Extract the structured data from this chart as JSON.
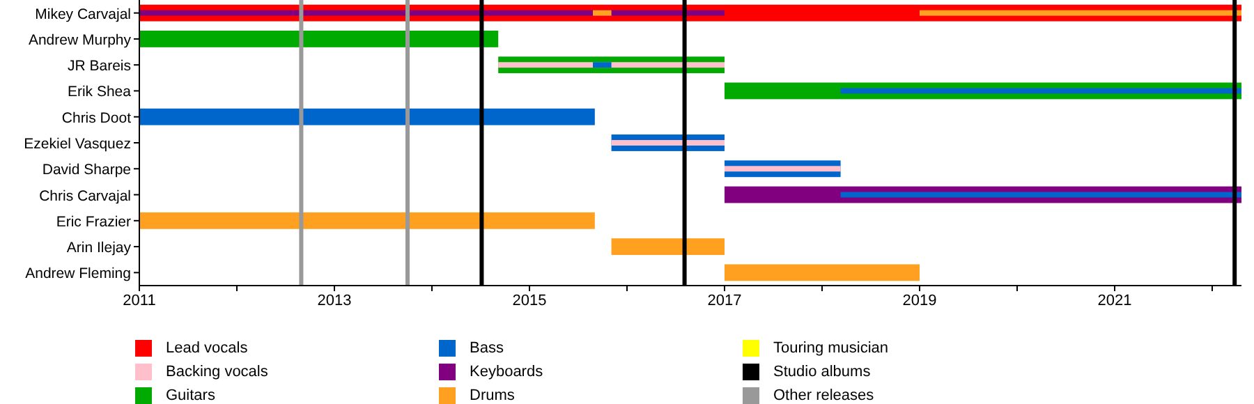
{
  "chart_data": {
    "type": "bar",
    "orientation": "horizontal",
    "legend": "bottom",
    "categories": [
      "Mikey Carvajal",
      "Andrew Murphy",
      "JR Bareis",
      "Erik Shea",
      "Chris Doot",
      "Ezekiel Vasquez",
      "David Sharpe",
      "Chris Carvajal",
      "Eric Frazier",
      "Arin Ilejay",
      "Andrew Fleming"
    ],
    "series": [
      {
        "name": "Lead vocals",
        "color": "#ff0000",
        "base": [
          2011,
          null,
          null,
          null,
          null,
          null,
          null,
          null,
          null,
          null,
          null
        ],
        "values": [
          11.3,
          null,
          null,
          null,
          null,
          null,
          null,
          null,
          null,
          null,
          null
        ]
      },
      {
        "name": "Backing vocals",
        "color": "#ffc0cb",
        "base": [
          null,
          null,
          2014.68,
          null,
          null,
          2015.84,
          2017,
          null,
          null,
          null,
          null
        ],
        "values": [
          null,
          null,
          2.32,
          null,
          null,
          1.16,
          1.19,
          null,
          null,
          null,
          null
        ]
      },
      {
        "name": "Guitars",
        "color": "#00aa00",
        "base": [
          null,
          2011,
          2014.68,
          2017,
          null,
          null,
          null,
          null,
          null,
          null,
          null
        ],
        "values": [
          null,
          3.68,
          2.32,
          5.3,
          null,
          null,
          null,
          null,
          null,
          null,
          null
        ]
      },
      {
        "name": "Bass",
        "color": "#0066cc",
        "base": [
          null,
          null,
          2015.65,
          2018.19,
          2011,
          2015.84,
          2017,
          2018.19,
          null,
          null,
          null
        ],
        "values": [
          null,
          null,
          0.19,
          4.11,
          4.67,
          1.16,
          1.19,
          4.11,
          null,
          null,
          null
        ]
      },
      {
        "name": "Keyboards",
        "color": "#800080",
        "base": [
          2011,
          null,
          null,
          null,
          null,
          null,
          null,
          2017,
          null,
          null,
          null
        ],
        "values": [
          6,
          null,
          null,
          null,
          null,
          null,
          null,
          5.3,
          null,
          null,
          null
        ]
      },
      {
        "name": "Drums",
        "color": "#ffa020",
        "base": [
          2015.65,
          null,
          null,
          null,
          null,
          null,
          null,
          null,
          2011,
          2015.84,
          2017
        ],
        "values": [
          0.19,
          null,
          null,
          null,
          null,
          null,
          null,
          null,
          4.67,
          1.16,
          2
        ]
      },
      {
        "name": "Touring musician",
        "color": "#ffff00",
        "base": [
          null,
          null,
          null,
          null,
          null,
          null,
          null,
          null,
          null,
          null,
          null
        ],
        "values": [
          null,
          null,
          null,
          null,
          null,
          null,
          null,
          null,
          null,
          null,
          null
        ]
      },
      {
        "color": "#ffa020",
        "base": [
          2019,
          null,
          null,
          null,
          null,
          null,
          null,
          null,
          null,
          null,
          null
        ],
        "values": [
          3.3,
          null,
          null,
          null,
          null,
          null,
          null,
          null,
          null,
          null,
          null
        ]
      }
    ],
    "xlim": [
      2011,
      2022.3
    ],
    "xticks": [
      2011,
      {
        "value": 2012,
        "label": null
      },
      2013,
      {
        "value": 2014,
        "label": null
      },
      2015,
      {
        "value": 2016,
        "label": null
      },
      2017,
      {
        "value": 2018,
        "label": null
      },
      2019,
      {
        "value": 2020,
        "label": null
      },
      2021,
      {
        "value": 2022,
        "label": null
      }
    ],
    "ref_lines": [
      {
        "axis": "x",
        "value": 2014.51,
        "label": "Studio albums",
        "color": "#000000"
      },
      {
        "axis": "x",
        "value": 2016.59,
        "color": "#000000"
      },
      {
        "axis": "x",
        "value": 2022.23,
        "color": "#000000"
      },
      {
        "axis": "x",
        "value": 2012.66,
        "label": "Other releases",
        "color": "#999999"
      },
      {
        "axis": "x",
        "value": 2013.75,
        "color": "#999999"
      }
    ]
  }
}
